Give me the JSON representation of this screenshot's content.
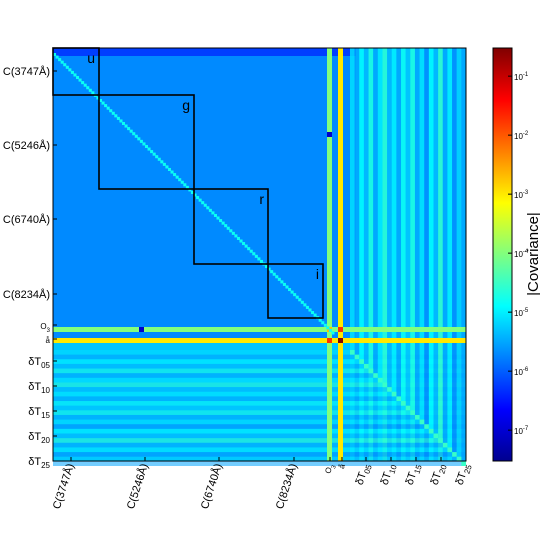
{
  "chart_data": {
    "type": "heatmap",
    "title": "",
    "colorbar": {
      "label": "|Covariance|",
      "scale": "log",
      "range": [
        3e-08,
        0.3
      ],
      "ticks": [
        {
          "label": "10",
          "exp": "-1",
          "value": 0.1
        },
        {
          "label": "10",
          "exp": "-2",
          "value": 0.01
        },
        {
          "label": "10",
          "exp": "-3",
          "value": 0.001
        },
        {
          "label": "10",
          "exp": "-4",
          "value": 0.0001
        },
        {
          "label": "10",
          "exp": "-5",
          "value": 1e-05
        },
        {
          "label": "10",
          "exp": "-6",
          "value": 1e-06
        },
        {
          "label": "10",
          "exp": "-7",
          "value": 1e-07
        }
      ]
    },
    "y_tick_labels": [
      {
        "text": "C(3747Å)",
        "sub": ""
      },
      {
        "text": "C(5246Å)",
        "sub": ""
      },
      {
        "text": "C(6740Å)",
        "sub": ""
      },
      {
        "text": "C(8234Å)",
        "sub": ""
      },
      {
        "text": "O",
        "sub": "3"
      },
      {
        "text": "å",
        "sub": ""
      },
      {
        "text": "δT",
        "sub": "05"
      },
      {
        "text": "δT",
        "sub": "10"
      },
      {
        "text": "δT",
        "sub": "15"
      },
      {
        "text": "δT",
        "sub": "20"
      },
      {
        "text": "δT",
        "sub": "25"
      }
    ],
    "x_tick_labels": [
      {
        "text": "C(3747Å)",
        "sub": ""
      },
      {
        "text": "C(5246Å)",
        "sub": ""
      },
      {
        "text": "C(6740Å)",
        "sub": ""
      },
      {
        "text": "C(8234Å)",
        "sub": ""
      },
      {
        "text": "O",
        "sub": "3"
      },
      {
        "text": "å",
        "sub": ""
      },
      {
        "text": "δT",
        "sub": "05"
      },
      {
        "text": "δT",
        "sub": "10"
      },
      {
        "text": "δT",
        "sub": "15"
      },
      {
        "text": "δT",
        "sub": "20"
      },
      {
        "text": "δT",
        "sub": "25"
      }
    ],
    "band_labels": [
      "u",
      "g",
      "r",
      "i"
    ],
    "matrix_blocks": {
      "continuum_order": 110,
      "ozone_index": 110,
      "angstrom_index": 111,
      "temperature_terms": 25
    },
    "typical_values": {
      "continuum_block": 2e-06,
      "continuum_diagonal": 1.5e-05,
      "ozone_row": 0.0001,
      "angstrom_row": 0.001,
      "angstrom_diagonal": 0.3,
      "temperature_block": 5e-06,
      "temperature_diagonal": 3e-05
    }
  }
}
